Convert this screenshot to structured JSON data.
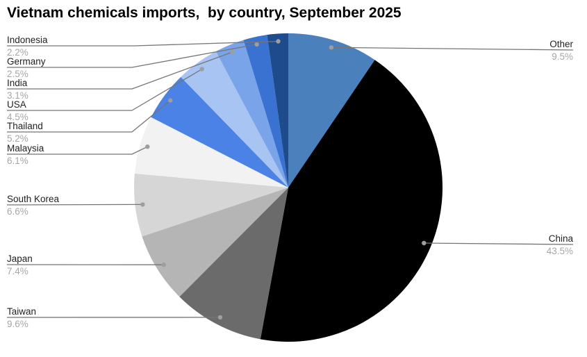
{
  "chart_data": {
    "type": "pie",
    "title": "Vietnam chemicals imports,  by country, September 2025",
    "unit": "%",
    "direction": "clockwise",
    "start_angle_deg": 0,
    "legend_position": "none",
    "grid": false,
    "slices": [
      {
        "label": "Other",
        "value": 9.5,
        "pct_label": "9.5%",
        "color": "#4a80bc",
        "label_side": "right"
      },
      {
        "label": "China",
        "value": 43.5,
        "pct_label": "43.5%",
        "color": "#000000",
        "label_side": "right"
      },
      {
        "label": "Taiwan",
        "value": 9.6,
        "pct_label": "9.6%",
        "color": "#6b6b6b",
        "label_side": "left"
      },
      {
        "label": "Japan",
        "value": 7.4,
        "pct_label": "7.4%",
        "color": "#b5b5b5",
        "label_side": "left"
      },
      {
        "label": "South Korea",
        "value": 6.6,
        "pct_label": "6.6%",
        "color": "#d6d6d6",
        "label_side": "left"
      },
      {
        "label": "Malaysia",
        "value": 6.1,
        "pct_label": "6.1%",
        "color": "#f2f2f2",
        "label_side": "left"
      },
      {
        "label": "Thailand",
        "value": 5.2,
        "pct_label": "5.2%",
        "color": "#4a82e6",
        "label_side": "left"
      },
      {
        "label": "USA",
        "value": 4.5,
        "pct_label": "4.5%",
        "color": "#a7c4f3",
        "label_side": "left"
      },
      {
        "label": "India",
        "value": 3.1,
        "pct_label": "3.1%",
        "color": "#7aa4e9",
        "label_side": "left"
      },
      {
        "label": "Germany",
        "value": 2.5,
        "pct_label": "2.5%",
        "color": "#3a72d2",
        "label_side": "left"
      },
      {
        "label": "Indonesia",
        "value": 2.2,
        "pct_label": "2.2%",
        "color": "#1e4b8c",
        "label_side": "left"
      }
    ],
    "style": {
      "background": "#ffffff",
      "title_color": "#000000",
      "name_color": "#212121",
      "percent_color": "#a6a6a6",
      "leader_line_color": "#757575",
      "dot_color": "#9e9e9e"
    }
  }
}
